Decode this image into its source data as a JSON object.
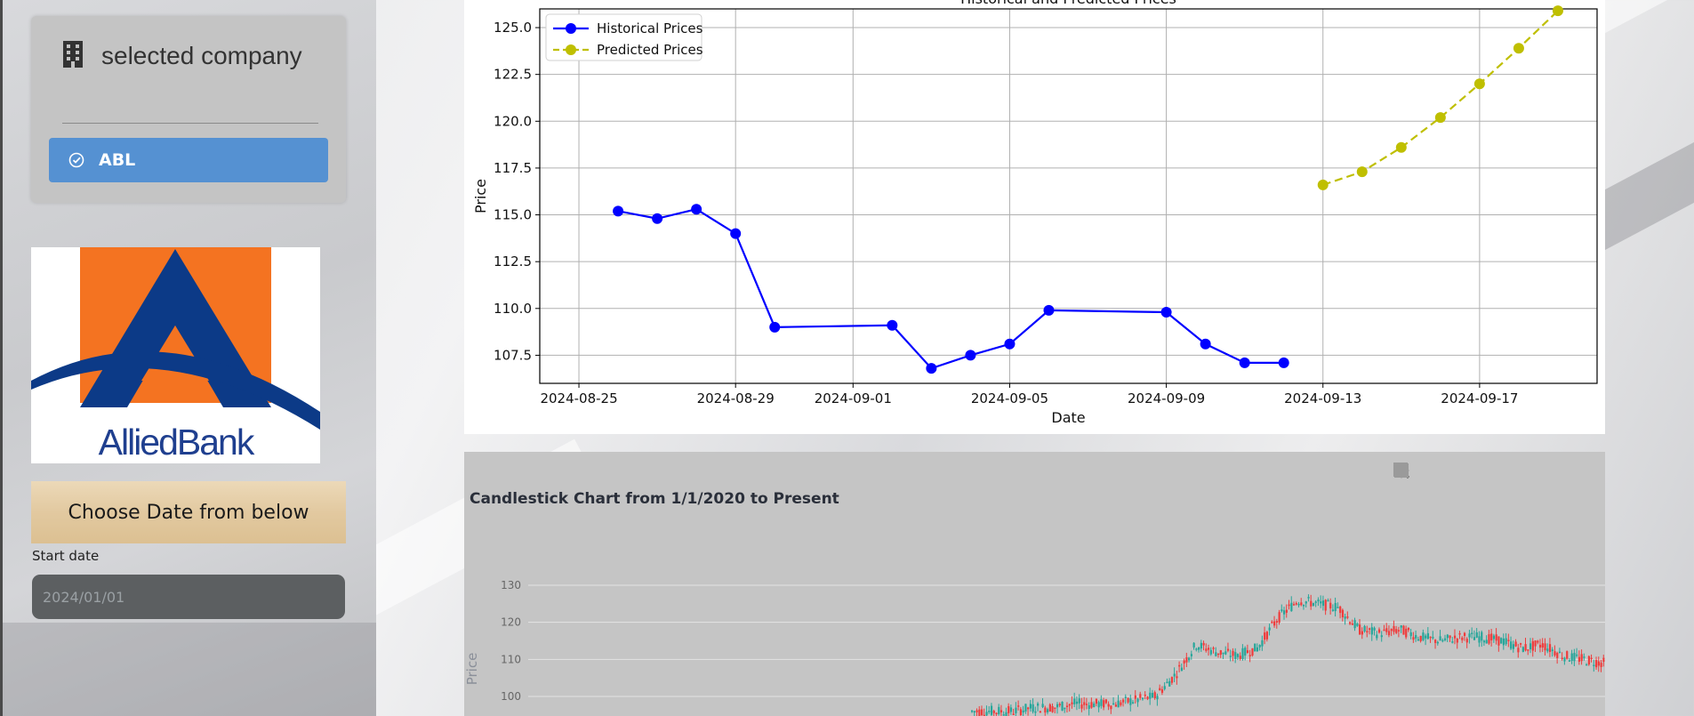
{
  "sidebar": {
    "company_heading": "selected company",
    "company_options": [
      {
        "label": "ABL",
        "selected": true
      }
    ],
    "logo": {
      "text": "AlliedBank",
      "colors": {
        "orange": "#f47321",
        "navy": "#0c3a87"
      }
    },
    "date_section_title": "Choose Date from below",
    "start_date_label": "Start date",
    "start_date_value": "2024/01/01"
  },
  "prediction_chart": {
    "icons": {
      "select_company": "building-icon",
      "option_check": "check-circle-icon"
    }
  },
  "chart_data": [
    {
      "type": "line",
      "title": "Historical and Predicted Prices",
      "xlabel": "Date",
      "ylabel": "Price",
      "x_ticks": [
        "2024-08-25",
        "2024-08-29",
        "2024-09-01",
        "2024-09-05",
        "2024-09-09",
        "2024-09-13",
        "2024-09-17"
      ],
      "y_ticks": [
        "107.5",
        "110.0",
        "112.5",
        "115.0",
        "117.5",
        "120.0",
        "122.5",
        "125.0"
      ],
      "ylim": [
        106.0,
        126.0
      ],
      "xlim": [
        "2024-08-24",
        "2024-09-20"
      ],
      "grid": true,
      "legend": "top-left",
      "series": [
        {
          "name": "Historical Prices",
          "color": "#0000ff",
          "style": "solid",
          "points": [
            [
              "2024-08-26",
              115.2
            ],
            [
              "2024-08-27",
              114.8
            ],
            [
              "2024-08-28",
              115.3
            ],
            [
              "2024-08-29",
              114.0
            ],
            [
              "2024-08-30",
              109.0
            ],
            [
              "2024-09-02",
              109.1
            ],
            [
              "2024-09-03",
              106.8
            ],
            [
              "2024-09-04",
              107.5
            ],
            [
              "2024-09-05",
              108.1
            ],
            [
              "2024-09-06",
              109.9
            ],
            [
              "2024-09-09",
              109.8
            ],
            [
              "2024-09-10",
              108.1
            ],
            [
              "2024-09-11",
              107.1
            ],
            [
              "2024-09-12",
              107.1
            ]
          ]
        },
        {
          "name": "Predicted Prices",
          "color": "#bfbf00",
          "style": "dashed",
          "points": [
            [
              "2024-09-13",
              116.6
            ],
            [
              "2024-09-14",
              117.3
            ],
            [
              "2024-09-15",
              118.6
            ],
            [
              "2024-09-16",
              120.2
            ],
            [
              "2024-09-17",
              122.0
            ],
            [
              "2024-09-18",
              123.9
            ],
            [
              "2024-09-19",
              125.9
            ]
          ]
        }
      ]
    },
    {
      "type": "candlestick",
      "title": "Candlestick Chart from 1/1/2020 to Present",
      "ylabel": "Price",
      "y_ticks": [
        "100",
        "110",
        "120",
        "130"
      ],
      "ylim": [
        97,
        134
      ],
      "colors": {
        "increasing": "#26a69a",
        "decreasing": "#ef3b3b"
      },
      "close_path_approx": [
        96,
        96,
        96,
        97,
        97,
        98,
        98,
        98,
        99,
        100,
        106,
        114,
        112,
        111,
        113,
        121,
        126,
        125,
        124,
        118,
        117,
        118,
        116,
        115,
        116,
        116,
        115,
        113,
        114,
        111,
        110,
        109
      ]
    }
  ],
  "candlestick_toolbar": [
    "camera-icon",
    "zoom-icon",
    "pan-icon",
    "zoom-in-icon",
    "zoom-out-icon",
    "autoscale-icon",
    "home-icon",
    "fullscreen-icon"
  ]
}
